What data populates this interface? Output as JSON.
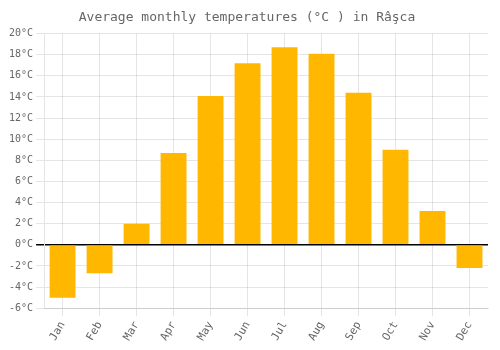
{
  "chart_data": {
    "type": "bar",
    "title": "Average monthly temperatures (°C ) in Râşca",
    "categories": [
      "Jan",
      "Feb",
      "Mar",
      "Apr",
      "May",
      "Jun",
      "Jul",
      "Aug",
      "Sep",
      "Oct",
      "Nov",
      "Dec"
    ],
    "values": [
      -5.0,
      -2.7,
      2.0,
      8.7,
      14.1,
      17.2,
      18.7,
      18.1,
      14.4,
      9.0,
      3.2,
      -2.2
    ],
    "color": "#FFB700",
    "ylim": [
      -6,
      20
    ],
    "yticks": [
      {
        "value": -6,
        "label": "-6°C"
      },
      {
        "value": -4,
        "label": "-4°C"
      },
      {
        "value": -2,
        "label": "-2°C"
      },
      {
        "value": 0,
        "label": "0°C"
      },
      {
        "value": 2,
        "label": "2°C"
      },
      {
        "value": 4,
        "label": "4°C"
      },
      {
        "value": 6,
        "label": "6°C"
      },
      {
        "value": 8,
        "label": "8°C"
      },
      {
        "value": 10,
        "label": "10°C"
      },
      {
        "value": 12,
        "label": "12°C"
      },
      {
        "value": 14,
        "label": "14°C"
      },
      {
        "value": 16,
        "label": "16°C"
      },
      {
        "value": 18,
        "label": "18°C"
      },
      {
        "value": 20,
        "label": "20°C"
      }
    ],
    "grid": true
  }
}
